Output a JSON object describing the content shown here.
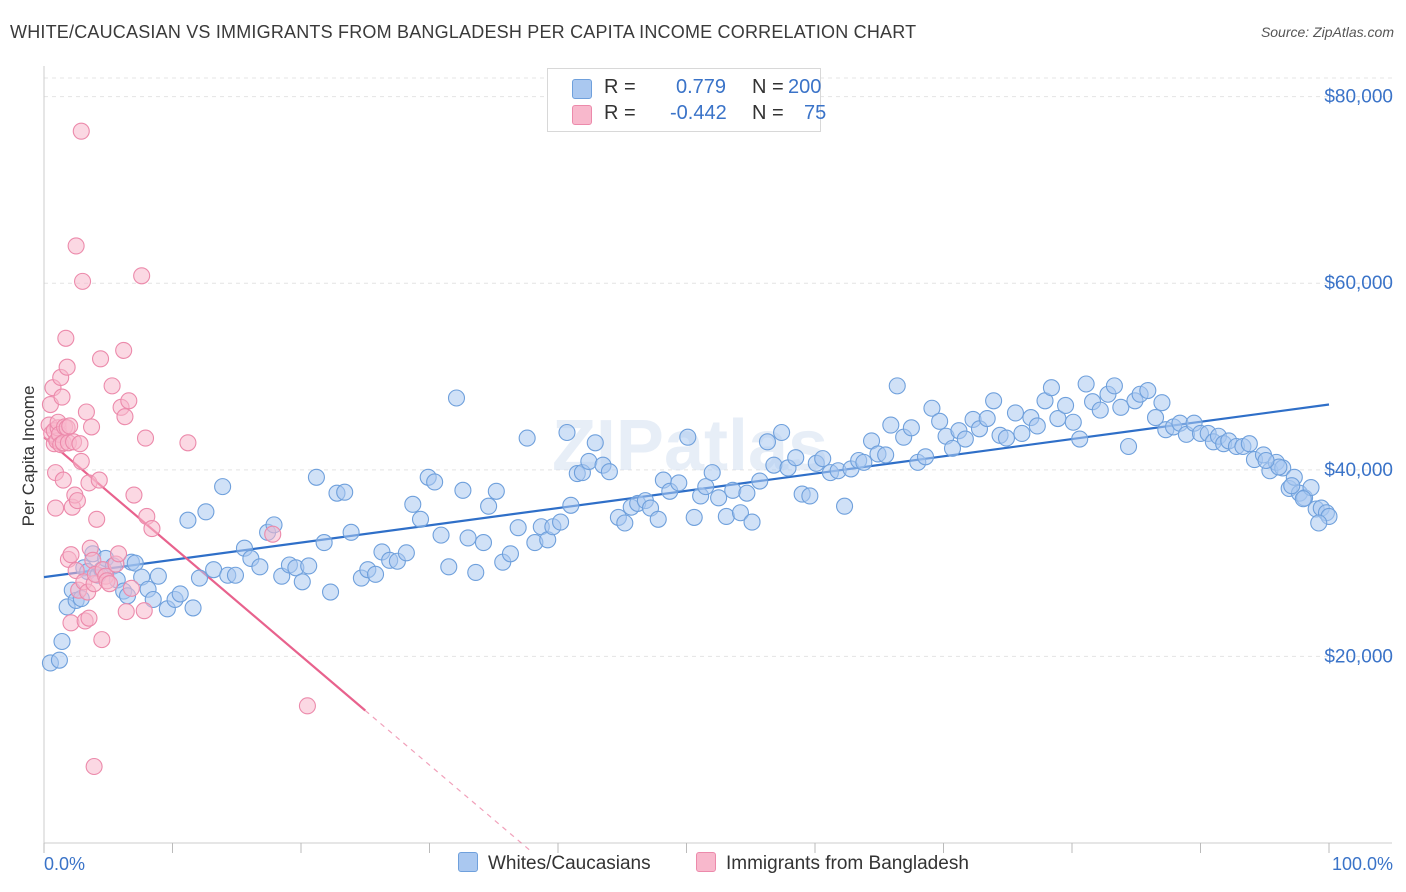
{
  "header": {
    "title": "WHITE/CAUCASIAN VS IMMIGRANTS FROM BANGLADESH PER CAPITA INCOME CORRELATION CHART",
    "source": "Source: ZipAtlas.com"
  },
  "stats_legend": {
    "rows": [
      {
        "r_label": "R =",
        "r_value": "0.779",
        "n_label": "N =",
        "n_value": "200",
        "color": "#aac8f0"
      },
      {
        "r_label": "R =",
        "r_value": "-0.442",
        "n_label": "N =",
        "n_value": "75",
        "color": "#f8b8cc"
      }
    ]
  },
  "bottom_legend": {
    "items": [
      {
        "label": "Whites/Caucasians",
        "color": "#aac8f0"
      },
      {
        "label": "Immigrants from Bangladesh",
        "color": "#f8b8cc"
      }
    ]
  },
  "chart_data": {
    "type": "scatter",
    "title": "WHITE/CAUCASIAN VS IMMIGRANTS FROM BANGLADESH PER CAPITA INCOME CORRELATION CHART",
    "xlabel": "",
    "ylabel": "Per Capita Income",
    "xlim": [
      0,
      100
    ],
    "ylim": [
      0,
      82000
    ],
    "x_tick_labels": [
      "0.0%",
      "100.0%"
    ],
    "y_ticks": [
      20000,
      40000,
      60000,
      80000
    ],
    "y_tick_labels": [
      "$20,000",
      "$40,000",
      "$60,000",
      "$80,000"
    ],
    "grid": true,
    "legend_placement": "bottom",
    "watermark": "ZIPatlas",
    "series": [
      {
        "name": "Whites/Caucasians",
        "color": "#6fa0dc",
        "fill": "#aac8f0",
        "trend": {
          "x": [
            0,
            100
          ],
          "y": [
            28500,
            47000
          ],
          "color": "#2f6fc8"
        },
        "points": [
          [
            0.5,
            19300
          ],
          [
            1.2,
            19600
          ],
          [
            1.4,
            21600
          ],
          [
            1.8,
            25300
          ],
          [
            2.2,
            27100
          ],
          [
            2.5,
            26000
          ],
          [
            2.9,
            26200
          ],
          [
            3.1,
            29500
          ],
          [
            3.4,
            29100
          ],
          [
            3.8,
            31000
          ],
          [
            4.2,
            28700
          ],
          [
            4.5,
            29300
          ],
          [
            4.8,
            30500
          ],
          [
            5.4,
            29700
          ],
          [
            5.7,
            28200
          ],
          [
            6.2,
            27000
          ],
          [
            6.5,
            26500
          ],
          [
            6.8,
            30100
          ],
          [
            7.1,
            30000
          ],
          [
            7.6,
            28500
          ],
          [
            8.1,
            27200
          ],
          [
            8.5,
            26100
          ],
          [
            8.9,
            28600
          ],
          [
            9.6,
            25100
          ],
          [
            10.2,
            26100
          ],
          [
            10.6,
            26700
          ],
          [
            11.2,
            34600
          ],
          [
            11.6,
            25200
          ],
          [
            12.1,
            28400
          ],
          [
            12.6,
            35500
          ],
          [
            13.2,
            29300
          ],
          [
            13.9,
            38200
          ],
          [
            14.3,
            28700
          ],
          [
            14.9,
            28700
          ],
          [
            15.6,
            31600
          ],
          [
            16.1,
            30500
          ],
          [
            16.8,
            29600
          ],
          [
            17.4,
            33300
          ],
          [
            17.9,
            34100
          ],
          [
            18.5,
            28600
          ],
          [
            19.1,
            29800
          ],
          [
            19.6,
            29500
          ],
          [
            20.1,
            28000
          ],
          [
            20.6,
            29700
          ],
          [
            21.2,
            39200
          ],
          [
            21.8,
            32200
          ],
          [
            22.3,
            26900
          ],
          [
            22.8,
            37500
          ],
          [
            23.4,
            37600
          ],
          [
            23.9,
            33300
          ],
          [
            24.7,
            28400
          ],
          [
            25.2,
            29300
          ],
          [
            25.8,
            28800
          ],
          [
            26.3,
            31200
          ],
          [
            26.9,
            30300
          ],
          [
            27.5,
            30200
          ],
          [
            28.2,
            31100
          ],
          [
            28.7,
            36300
          ],
          [
            29.3,
            34700
          ],
          [
            29.9,
            39200
          ],
          [
            30.4,
            38700
          ],
          [
            30.9,
            33000
          ],
          [
            31.5,
            29600
          ],
          [
            32.1,
            47700
          ],
          [
            32.6,
            37800
          ],
          [
            33.0,
            32700
          ],
          [
            33.6,
            29000
          ],
          [
            34.2,
            32200
          ],
          [
            34.6,
            36100
          ],
          [
            35.2,
            37700
          ],
          [
            35.7,
            30100
          ],
          [
            36.3,
            31000
          ],
          [
            36.9,
            33800
          ],
          [
            37.6,
            43400
          ],
          [
            38.2,
            32200
          ],
          [
            38.7,
            33900
          ],
          [
            39.2,
            32500
          ],
          [
            39.6,
            33900
          ],
          [
            40.2,
            34400
          ],
          [
            40.7,
            44000
          ],
          [
            41.0,
            36200
          ],
          [
            41.5,
            39600
          ],
          [
            41.9,
            39700
          ],
          [
            42.4,
            40900
          ],
          [
            42.9,
            42900
          ],
          [
            43.5,
            40500
          ],
          [
            44.0,
            39800
          ],
          [
            44.7,
            34900
          ],
          [
            45.2,
            34300
          ],
          [
            45.7,
            36000
          ],
          [
            46.2,
            36400
          ],
          [
            46.8,
            36700
          ],
          [
            47.2,
            35900
          ],
          [
            47.8,
            34700
          ],
          [
            48.2,
            38900
          ],
          [
            48.7,
            37700
          ],
          [
            49.4,
            38600
          ],
          [
            50.1,
            43500
          ],
          [
            50.6,
            34900
          ],
          [
            51.1,
            37200
          ],
          [
            51.5,
            38200
          ],
          [
            52.0,
            39700
          ],
          [
            52.5,
            37000
          ],
          [
            53.1,
            35000
          ],
          [
            53.6,
            37800
          ],
          [
            54.2,
            35400
          ],
          [
            54.7,
            37500
          ],
          [
            55.1,
            34400
          ],
          [
            55.7,
            38800
          ],
          [
            56.3,
            43000
          ],
          [
            56.8,
            40500
          ],
          [
            57.4,
            44000
          ],
          [
            57.9,
            40200
          ],
          [
            58.5,
            41300
          ],
          [
            59.0,
            37400
          ],
          [
            59.6,
            37200
          ],
          [
            60.1,
            40700
          ],
          [
            60.6,
            41200
          ],
          [
            61.2,
            39700
          ],
          [
            61.8,
            39900
          ],
          [
            62.3,
            36100
          ],
          [
            62.8,
            40100
          ],
          [
            63.4,
            41000
          ],
          [
            63.8,
            40800
          ],
          [
            64.4,
            43100
          ],
          [
            64.9,
            41700
          ],
          [
            65.5,
            41600
          ],
          [
            65.9,
            44800
          ],
          [
            66.4,
            49000
          ],
          [
            66.9,
            43500
          ],
          [
            67.5,
            44500
          ],
          [
            68.0,
            40800
          ],
          [
            68.6,
            41400
          ],
          [
            69.1,
            46600
          ],
          [
            69.7,
            45200
          ],
          [
            70.2,
            43600
          ],
          [
            70.7,
            42300
          ],
          [
            71.2,
            44200
          ],
          [
            71.7,
            43300
          ],
          [
            72.3,
            45400
          ],
          [
            72.8,
            44400
          ],
          [
            73.4,
            45500
          ],
          [
            73.9,
            47400
          ],
          [
            74.4,
            43700
          ],
          [
            74.9,
            43400
          ],
          [
            75.6,
            46100
          ],
          [
            76.1,
            43900
          ],
          [
            76.8,
            45600
          ],
          [
            77.3,
            44700
          ],
          [
            77.9,
            47400
          ],
          [
            78.4,
            48800
          ],
          [
            78.9,
            45500
          ],
          [
            79.5,
            46900
          ],
          [
            80.1,
            45100
          ],
          [
            80.6,
            43300
          ],
          [
            81.1,
            49200
          ],
          [
            81.6,
            47300
          ],
          [
            82.2,
            46400
          ],
          [
            82.8,
            48100
          ],
          [
            83.3,
            49000
          ],
          [
            83.8,
            46700
          ],
          [
            84.4,
            42500
          ],
          [
            84.9,
            47400
          ],
          [
            85.3,
            48100
          ],
          [
            85.9,
            48500
          ],
          [
            86.5,
            45600
          ],
          [
            87.0,
            47200
          ],
          [
            87.3,
            44300
          ],
          [
            87.9,
            44600
          ],
          [
            88.4,
            45000
          ],
          [
            88.9,
            43800
          ],
          [
            89.5,
            45000
          ],
          [
            90.0,
            43900
          ],
          [
            90.6,
            43900
          ],
          [
            91.0,
            43000
          ],
          [
            91.4,
            43600
          ],
          [
            91.8,
            42800
          ],
          [
            92.2,
            43100
          ],
          [
            92.8,
            42500
          ],
          [
            93.3,
            42500
          ],
          [
            93.8,
            42800
          ],
          [
            94.2,
            41100
          ],
          [
            94.9,
            41600
          ],
          [
            95.4,
            39900
          ],
          [
            95.9,
            40800
          ],
          [
            96.4,
            40200
          ],
          [
            96.9,
            38000
          ],
          [
            97.3,
            39200
          ],
          [
            97.7,
            37500
          ],
          [
            98.1,
            37000
          ],
          [
            98.6,
            38100
          ],
          [
            99.0,
            35800
          ],
          [
            99.4,
            35900
          ],
          [
            99.8,
            35400
          ],
          [
            100.0,
            35000
          ],
          [
            99.2,
            34300
          ],
          [
            98.0,
            36900
          ],
          [
            97.1,
            38300
          ],
          [
            96.1,
            40300
          ],
          [
            95.1,
            41000
          ]
        ]
      },
      {
        "name": "Immigrants from Bangladesh",
        "color": "#ec8aab",
        "fill": "#f8b8cc",
        "trend": {
          "x": [
            0,
            25
          ],
          "y": [
            43500,
            14200
          ],
          "color": "#e8628d",
          "dashed_extension": {
            "x": [
              25,
              38
            ],
            "y": [
              14200,
              -1000
            ]
          }
        },
        "points": [
          [
            0.4,
            44800
          ],
          [
            0.5,
            47000
          ],
          [
            0.6,
            43900
          ],
          [
            0.7,
            48800
          ],
          [
            0.8,
            42800
          ],
          [
            0.8,
            44200
          ],
          [
            0.9,
            35900
          ],
          [
            0.9,
            39700
          ],
          [
            1.0,
            43100
          ],
          [
            1.1,
            44500
          ],
          [
            1.1,
            45100
          ],
          [
            1.2,
            43800
          ],
          [
            1.3,
            42700
          ],
          [
            1.3,
            49900
          ],
          [
            1.4,
            47800
          ],
          [
            1.5,
            38900
          ],
          [
            1.5,
            42900
          ],
          [
            1.6,
            44600
          ],
          [
            1.7,
            54100
          ],
          [
            1.8,
            51000
          ],
          [
            1.8,
            44500
          ],
          [
            1.9,
            30400
          ],
          [
            1.9,
            42900
          ],
          [
            2.0,
            44700
          ],
          [
            2.1,
            30900
          ],
          [
            2.1,
            23600
          ],
          [
            2.2,
            36000
          ],
          [
            2.3,
            43000
          ],
          [
            2.4,
            37300
          ],
          [
            2.5,
            29200
          ],
          [
            2.5,
            64000
          ],
          [
            2.6,
            36700
          ],
          [
            2.7,
            27100
          ],
          [
            2.8,
            42800
          ],
          [
            2.9,
            40900
          ],
          [
            2.9,
            76300
          ],
          [
            3.0,
            60200
          ],
          [
            3.1,
            28000
          ],
          [
            3.2,
            23800
          ],
          [
            3.3,
            46200
          ],
          [
            3.4,
            26900
          ],
          [
            3.5,
            38600
          ],
          [
            3.5,
            24100
          ],
          [
            3.6,
            31600
          ],
          [
            3.7,
            44600
          ],
          [
            3.8,
            30300
          ],
          [
            3.9,
            27800
          ],
          [
            3.9,
            8200
          ],
          [
            4.0,
            28800
          ],
          [
            4.1,
            34700
          ],
          [
            4.3,
            38900
          ],
          [
            4.4,
            51900
          ],
          [
            4.5,
            21800
          ],
          [
            4.6,
            29300
          ],
          [
            4.8,
            28600
          ],
          [
            4.9,
            28100
          ],
          [
            5.1,
            27800
          ],
          [
            5.3,
            49000
          ],
          [
            5.6,
            29900
          ],
          [
            5.8,
            31000
          ],
          [
            6.0,
            46700
          ],
          [
            6.2,
            52800
          ],
          [
            6.3,
            45700
          ],
          [
            6.4,
            24800
          ],
          [
            6.6,
            47400
          ],
          [
            6.8,
            27300
          ],
          [
            7.0,
            37300
          ],
          [
            7.6,
            60800
          ],
          [
            7.8,
            24900
          ],
          [
            7.9,
            43400
          ],
          [
            8.0,
            35000
          ],
          [
            8.4,
            33700
          ],
          [
            11.2,
            42900
          ],
          [
            17.8,
            33100
          ],
          [
            20.5,
            14700
          ]
        ]
      }
    ]
  }
}
